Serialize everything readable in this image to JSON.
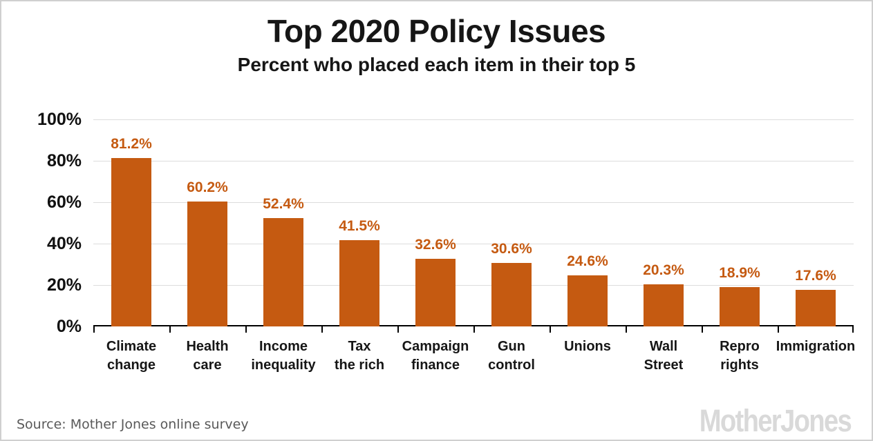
{
  "header": {
    "title": "Top 2020 Policy Issues",
    "subtitle": "Percent who placed each item in their top 5"
  },
  "footer": {
    "source_text": "Source: Mother Jones online survey",
    "logo_text": "MotherJones"
  },
  "colors": {
    "bar": "#C55A11",
    "value_label": "#C55A11",
    "grid": "#DCDCDC",
    "axis": "#000000",
    "text": "#161616",
    "source_text": "#595959",
    "logo": "#D9D9D9"
  },
  "chart_data": {
    "type": "bar",
    "title": "Top 2020 Policy Issues",
    "subtitle": "Percent who placed each item in their top 5",
    "categories": [
      "Climate change",
      "Health care",
      "Income inequality",
      "Tax the rich",
      "Campaign finance",
      "Gun control",
      "Unions",
      "Wall Street",
      "Repro rights",
      "Immigration"
    ],
    "category_lines": [
      [
        "Climate",
        "change"
      ],
      [
        "Health",
        "care"
      ],
      [
        "Income",
        "inequality"
      ],
      [
        "Tax",
        "the rich"
      ],
      [
        "Campaign",
        "finance"
      ],
      [
        "Gun",
        "control"
      ],
      [
        "Unions"
      ],
      [
        "Wall",
        "Street"
      ],
      [
        "Repro",
        "rights"
      ],
      [
        "Immigration"
      ]
    ],
    "values": [
      81.2,
      60.2,
      52.4,
      41.5,
      32.6,
      30.6,
      24.6,
      20.3,
      18.9,
      17.6
    ],
    "value_labels": [
      "81.2%",
      "60.2%",
      "52.4%",
      "41.5%",
      "32.6%",
      "30.6%",
      "24.6%",
      "20.3%",
      "18.9%",
      "17.6%"
    ],
    "xlabel": "",
    "ylabel": "",
    "ylim": [
      0,
      100
    ],
    "yticks": [
      "100%",
      "80%",
      "60%",
      "40%",
      "20%",
      "0%"
    ],
    "grid": "horizontal",
    "legend": "none",
    "bar_label_position": "above"
  }
}
